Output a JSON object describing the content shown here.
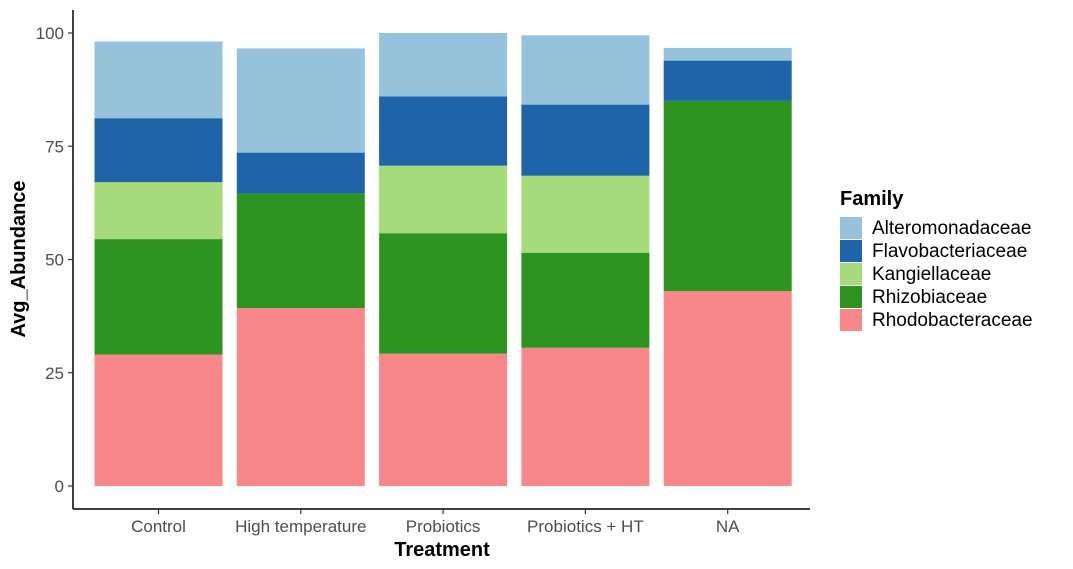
{
  "chart_data": {
    "type": "bar",
    "stacked": true,
    "title": "",
    "xlabel": "Treatment",
    "ylabel": "Avg_Abundance",
    "ylim": [
      -5,
      105
    ],
    "yticks": [
      0,
      25,
      50,
      75,
      100
    ],
    "ytick_labels": [
      "0",
      "25",
      "50",
      "75",
      "100"
    ],
    "grid": false,
    "legend_position": "right",
    "legend_title": "Family",
    "categories": [
      "Control",
      "High temperature",
      "Probiotics",
      "Probiotics + HT",
      "NA"
    ],
    "series": [
      {
        "name": "Rhodobacteraceae",
        "color": "#f8878a",
        "values": [
          29.0,
          39.3,
          29.2,
          30.5,
          43.0
        ]
      },
      {
        "name": "Rhizobiaceae",
        "color": "#2e9421",
        "values": [
          25.5,
          25.3,
          26.6,
          21.0,
          42.0
        ]
      },
      {
        "name": "Kangiellaceae",
        "color": "#a6db7b",
        "values": [
          12.6,
          0,
          14.9,
          17.0,
          0
        ]
      },
      {
        "name": "Flavobacteriaceae",
        "color": "#1f63a8",
        "values": [
          14.1,
          9.0,
          15.3,
          15.7,
          8.9
        ]
      },
      {
        "name": "Alteromonadaceae",
        "color": "#97c2dc",
        "values": [
          16.9,
          23.0,
          14.0,
          15.3,
          2.8
        ]
      }
    ],
    "legend_order": [
      "Alteromonadaceae",
      "Flavobacteriaceae",
      "Kangiellaceae",
      "Rhizobiaceae",
      "Rhodobacteraceae"
    ]
  }
}
